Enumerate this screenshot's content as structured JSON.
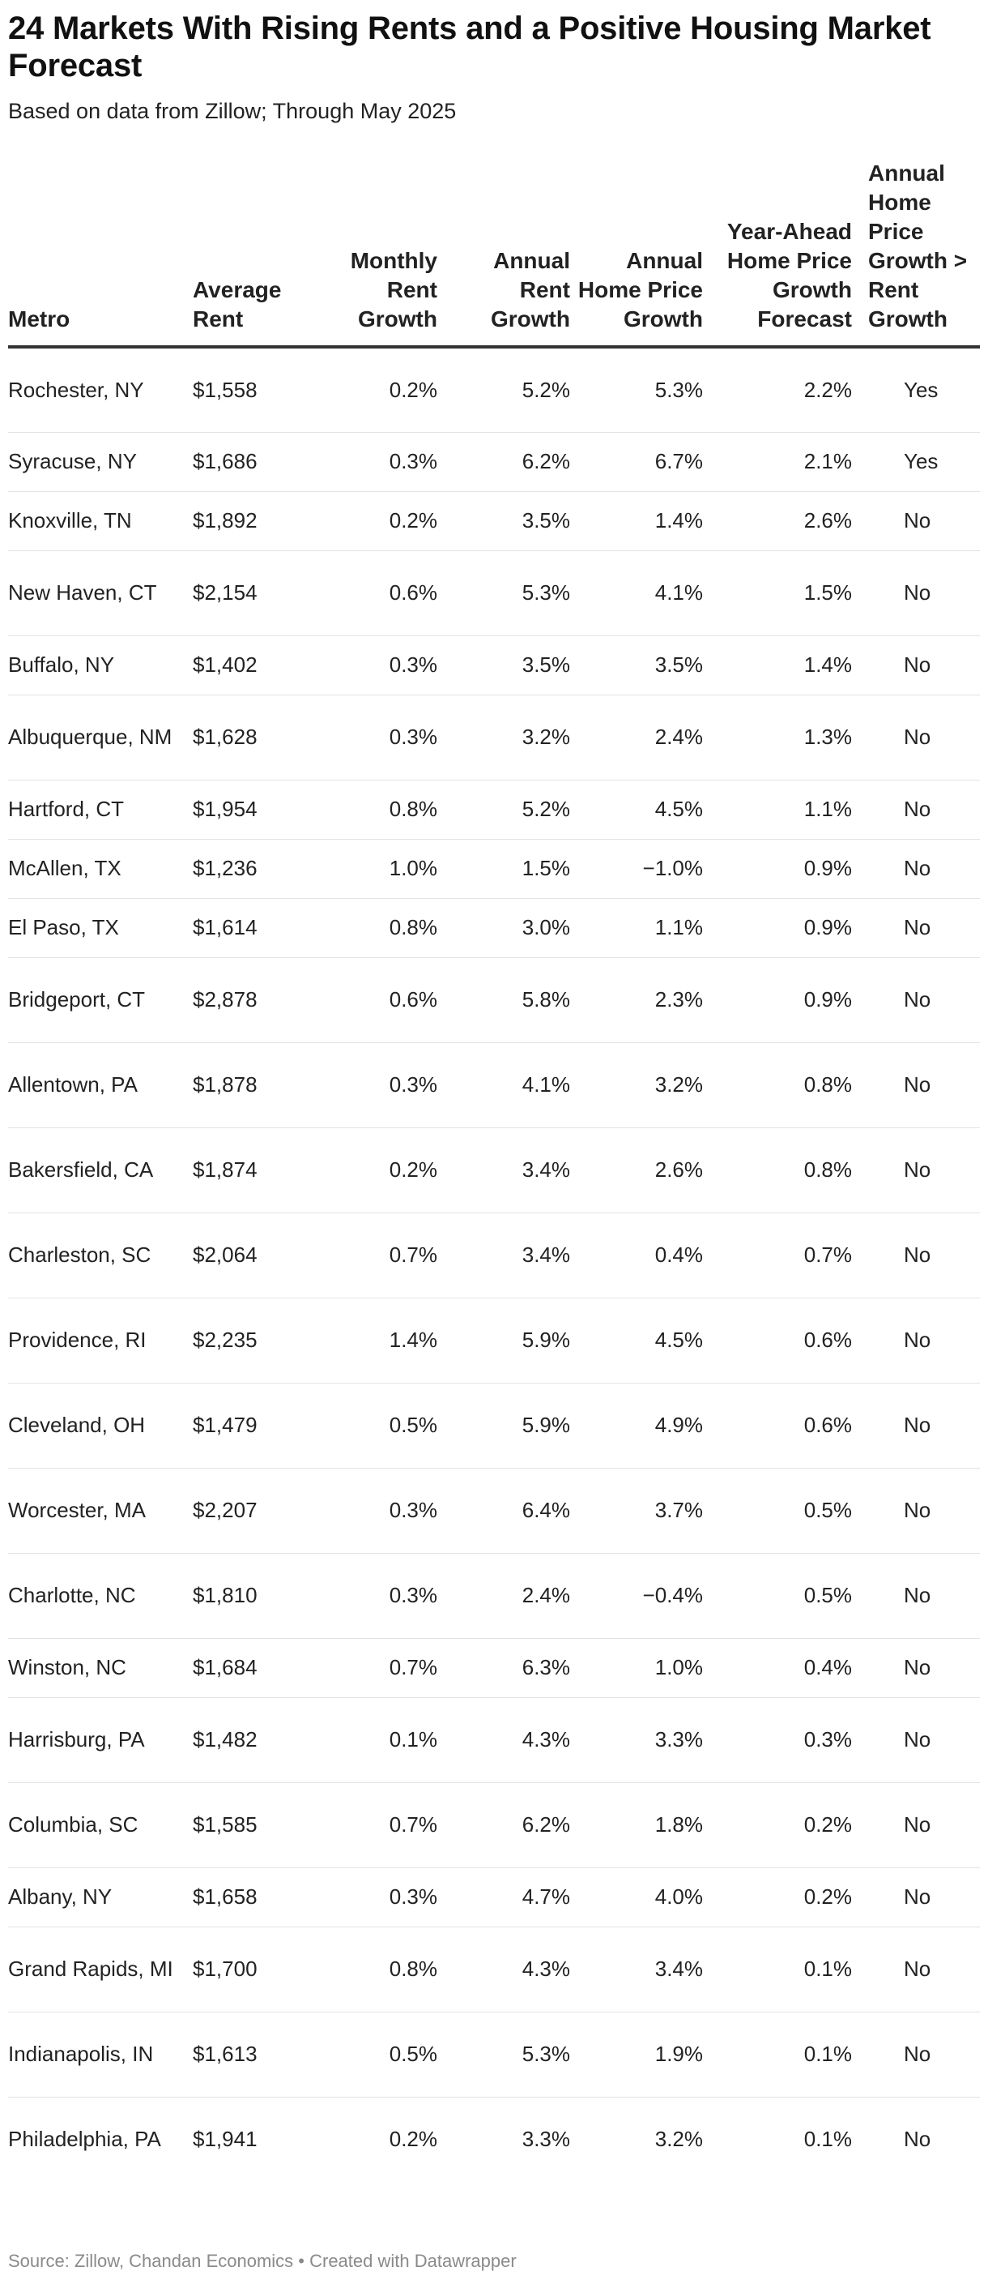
{
  "title": "24 Markets With Rising Rents and a Positive Housing Market Forecast",
  "subtitle": "Based on data from Zillow; Through May 2025",
  "source": "Source: Zillow, Chandan Economics • Created with Datawrapper",
  "chart_data": {
    "type": "table",
    "columns": [
      "Metro",
      "Average Rent",
      "Monthly Rent Growth",
      "Annual Rent Growth",
      "Annual Home Price Growth",
      "Year-Ahead Home Price Growth Forecast",
      "Annual Home Price Growth > Rent Growth"
    ],
    "rows": [
      [
        "Rochester, NY",
        "$1,558",
        "0.2%",
        "5.2%",
        "5.3%",
        "2.2%",
        "Yes"
      ],
      [
        "Syracuse, NY",
        "$1,686",
        "0.3%",
        "6.2%",
        "6.7%",
        "2.1%",
        "Yes"
      ],
      [
        "Knoxville, TN",
        "$1,892",
        "0.2%",
        "3.5%",
        "1.4%",
        "2.6%",
        "No"
      ],
      [
        "New Haven, CT",
        "$2,154",
        "0.6%",
        "5.3%",
        "4.1%",
        "1.5%",
        "No"
      ],
      [
        "Buffalo, NY",
        "$1,402",
        "0.3%",
        "3.5%",
        "3.5%",
        "1.4%",
        "No"
      ],
      [
        "Albuquerque, NM",
        "$1,628",
        "0.3%",
        "3.2%",
        "2.4%",
        "1.3%",
        "No"
      ],
      [
        "Hartford, CT",
        "$1,954",
        "0.8%",
        "5.2%",
        "4.5%",
        "1.1%",
        "No"
      ],
      [
        "McAllen, TX",
        "$1,236",
        "1.0%",
        "1.5%",
        "−1.0%",
        "0.9%",
        "No"
      ],
      [
        "El Paso, TX",
        "$1,614",
        "0.8%",
        "3.0%",
        "1.1%",
        "0.9%",
        "No"
      ],
      [
        "Bridgeport, CT",
        "$2,878",
        "0.6%",
        "5.8%",
        "2.3%",
        "0.9%",
        "No"
      ],
      [
        "Allentown, PA",
        "$1,878",
        "0.3%",
        "4.1%",
        "3.2%",
        "0.8%",
        "No"
      ],
      [
        "Bakersfield, CA",
        "$1,874",
        "0.2%",
        "3.4%",
        "2.6%",
        "0.8%",
        "No"
      ],
      [
        "Charleston, SC",
        "$2,064",
        "0.7%",
        "3.4%",
        "0.4%",
        "0.7%",
        "No"
      ],
      [
        "Providence, RI",
        "$2,235",
        "1.4%",
        "5.9%",
        "4.5%",
        "0.6%",
        "No"
      ],
      [
        "Cleveland, OH",
        "$1,479",
        "0.5%",
        "5.9%",
        "4.9%",
        "0.6%",
        "No"
      ],
      [
        "Worcester, MA",
        "$2,207",
        "0.3%",
        "6.4%",
        "3.7%",
        "0.5%",
        "No"
      ],
      [
        "Charlotte, NC",
        "$1,810",
        "0.3%",
        "2.4%",
        "−0.4%",
        "0.5%",
        "No"
      ],
      [
        "Winston, NC",
        "$1,684",
        "0.7%",
        "6.3%",
        "1.0%",
        "0.4%",
        "No"
      ],
      [
        "Harrisburg, PA",
        "$1,482",
        "0.1%",
        "4.3%",
        "3.3%",
        "0.3%",
        "No"
      ],
      [
        "Columbia, SC",
        "$1,585",
        "0.7%",
        "6.2%",
        "1.8%",
        "0.2%",
        "No"
      ],
      [
        "Albany, NY",
        "$1,658",
        "0.3%",
        "4.7%",
        "4.0%",
        "0.2%",
        "No"
      ],
      [
        "Grand Rapids, MI",
        "$1,700",
        "0.8%",
        "4.3%",
        "3.4%",
        "0.1%",
        "No"
      ],
      [
        "Indianapolis, IN",
        "$1,613",
        "0.5%",
        "5.3%",
        "1.9%",
        "0.1%",
        "No"
      ],
      [
        "Philadelphia, PA",
        "$1,941",
        "0.2%",
        "3.3%",
        "3.2%",
        "0.1%",
        "No"
      ]
    ]
  }
}
